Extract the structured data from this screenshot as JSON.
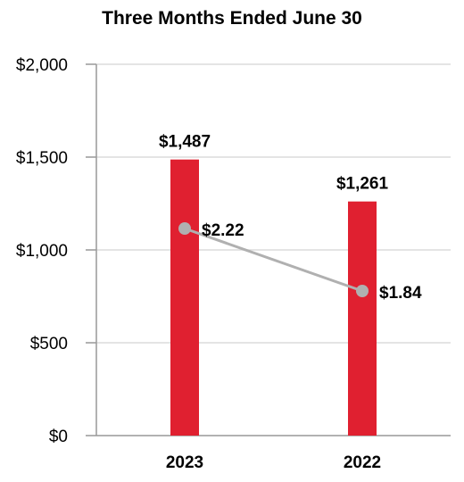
{
  "chart_data": {
    "type": "bar",
    "title": "Three Months Ended June 30",
    "categories": [
      "2023",
      "2022"
    ],
    "ylim": [
      0,
      2000
    ],
    "yticks": [
      0,
      500,
      1000,
      1500,
      2000
    ],
    "ytick_labels": [
      "$0",
      "$500",
      "$1,000",
      "$1,500",
      "$2,000"
    ],
    "grid": true,
    "series": [
      {
        "type": "bar",
        "values": [
          1487,
          1261
        ],
        "labels": [
          "$1,487",
          "$1,261"
        ],
        "color": "#e02030"
      },
      {
        "type": "line",
        "values": [
          2.22,
          1.84
        ],
        "labels": [
          "$2.22",
          "$1.84"
        ],
        "color": "#b0b0b0"
      }
    ]
  }
}
